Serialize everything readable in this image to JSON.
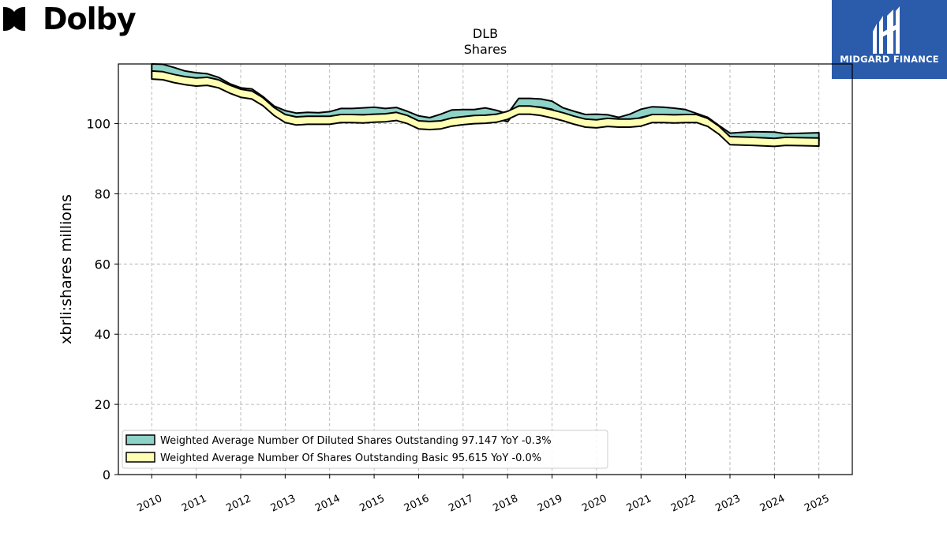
{
  "logos": {
    "dolby_text": "Dolby",
    "midgard_text": "MIDGARD FINANCE"
  },
  "chart_data": {
    "type": "area",
    "title": "DLB",
    "subtitle": "Shares",
    "ylabel": "xbrli:shares millions",
    "xlabel": "",
    "ylim": [
      0,
      117
    ],
    "xlim": [
      2009.25,
      2025.75
    ],
    "yticks": [
      0,
      20,
      40,
      60,
      80,
      100
    ],
    "xticks": [
      2010,
      2011,
      2012,
      2013,
      2014,
      2015,
      2016,
      2017,
      2018,
      2019,
      2020,
      2021,
      2022,
      2023,
      2024,
      2025
    ],
    "grid": true,
    "legend_placement": "lower-left",
    "band_width": 2.3,
    "series": [
      {
        "name": "Weighted Average Number Of Diluted Shares Outstanding",
        "legend_label": "Weighted Average Number Of Diluted Shares Outstanding  97.147 YoY -0.3%",
        "color": "#8dd3c7",
        "x": [
          2010.0,
          2010.25,
          2010.5,
          2010.75,
          2011.0,
          2011.25,
          2011.5,
          2011.75,
          2012.0,
          2012.25,
          2012.5,
          2012.75,
          2013.0,
          2013.25,
          2013.5,
          2013.75,
          2014.0,
          2014.25,
          2014.5,
          2014.75,
          2015.0,
          2015.25,
          2015.5,
          2015.75,
          2016.0,
          2016.25,
          2016.5,
          2016.75,
          2017.0,
          2017.25,
          2017.5,
          2017.75,
          2018.0,
          2018.25,
          2018.5,
          2018.75,
          2019.0,
          2019.25,
          2019.5,
          2019.75,
          2020.0,
          2020.25,
          2020.5,
          2020.75,
          2021.0,
          2021.25,
          2021.5,
          2021.75,
          2022.0,
          2022.25,
          2022.5,
          2022.75,
          2023.0,
          2023.5,
          2024.0,
          2024.25,
          2025.0
        ],
        "values": [
          117.0,
          116.9,
          116.0,
          115.0,
          114.5,
          114.2,
          113.2,
          111.4,
          110.2,
          109.9,
          107.7,
          105.0,
          103.7,
          103.0,
          103.2,
          103.1,
          103.4,
          104.3,
          104.3,
          104.5,
          104.7,
          104.3,
          104.6,
          103.5,
          102.2,
          101.7,
          102.7,
          103.9,
          104.0,
          104.0,
          104.5,
          103.8,
          102.8,
          107.2,
          107.2,
          107.0,
          106.4,
          104.5,
          103.5,
          102.6,
          102.7,
          102.5,
          101.8,
          102.7,
          104.1,
          104.8,
          104.7,
          104.4,
          104.0,
          102.9,
          101.8,
          99.5,
          97.3,
          97.7,
          97.6,
          97.1,
          97.4
        ]
      },
      {
        "name": "Weighted Average Number Of Shares Outstanding Basic",
        "legend_label": "Weighted Average Number Of Shares Outstanding Basic  95.615 YoY -0.0%",
        "color": "#ffffb3",
        "x": [
          2010.0,
          2010.25,
          2010.5,
          2010.75,
          2011.0,
          2011.25,
          2011.5,
          2011.75,
          2012.0,
          2012.25,
          2012.5,
          2012.75,
          2013.0,
          2013.25,
          2013.5,
          2013.75,
          2014.0,
          2014.25,
          2014.5,
          2014.75,
          2015.0,
          2015.25,
          2015.5,
          2015.75,
          2016.0,
          2016.25,
          2016.5,
          2016.75,
          2017.0,
          2017.25,
          2017.5,
          2017.75,
          2018.0,
          2018.25,
          2018.5,
          2018.75,
          2019.0,
          2019.25,
          2019.5,
          2019.75,
          2020.0,
          2020.25,
          2020.5,
          2020.75,
          2021.0,
          2021.25,
          2021.5,
          2021.75,
          2022.0,
          2022.25,
          2022.5,
          2022.75,
          2023.0,
          2023.5,
          2024.0,
          2024.25,
          2025.0
        ],
        "values": [
          115.0,
          114.8,
          114.0,
          113.4,
          113.0,
          113.2,
          112.5,
          111.0,
          109.8,
          109.3,
          107.4,
          104.6,
          102.6,
          101.9,
          102.1,
          102.1,
          102.1,
          102.6,
          102.6,
          102.5,
          102.7,
          102.8,
          103.2,
          102.3,
          100.8,
          100.6,
          100.8,
          101.6,
          102.0,
          102.3,
          102.4,
          102.7,
          103.5,
          105.0,
          105.0,
          104.6,
          103.9,
          103.1,
          102.1,
          101.3,
          101.1,
          101.5,
          101.3,
          101.3,
          101.6,
          102.6,
          102.6,
          102.5,
          102.6,
          102.6,
          101.5,
          99.3,
          96.3,
          96.1,
          95.8,
          96.1,
          95.9
        ]
      }
    ]
  }
}
